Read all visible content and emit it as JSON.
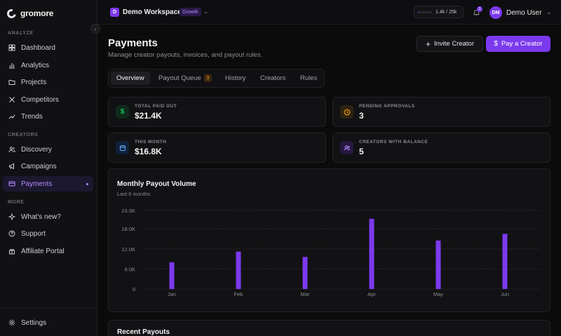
{
  "brand": {
    "name": "gromore"
  },
  "sidebar": {
    "sections": [
      {
        "label": "ANALYZE",
        "items": [
          {
            "label": "Dashboard",
            "icon": "grid-icon"
          },
          {
            "label": "Analytics",
            "icon": "bar-chart-icon"
          },
          {
            "label": "Projects",
            "icon": "folder-icon"
          },
          {
            "label": "Competitors",
            "icon": "swords-icon"
          },
          {
            "label": "Trends",
            "icon": "trend-icon"
          }
        ]
      },
      {
        "label": "CREATORS",
        "items": [
          {
            "label": "Discovery",
            "icon": "users-icon"
          },
          {
            "label": "Campaigns",
            "icon": "megaphone-icon"
          },
          {
            "label": "Payments",
            "icon": "card-icon",
            "active": true
          }
        ]
      },
      {
        "label": "MORE",
        "items": [
          {
            "label": "What's new?",
            "icon": "sparkle-icon"
          },
          {
            "label": "Support",
            "icon": "help-icon"
          },
          {
            "label": "Affiliate Portal",
            "icon": "gift-icon"
          }
        ]
      }
    ],
    "footer": {
      "label": "Settings",
      "icon": "gear-icon"
    }
  },
  "topbar": {
    "workspace_initial": "D",
    "workspace_name": "Demo Workspace",
    "workspace_plan": "Growth",
    "usage_text": "1.4k / 25k",
    "usage_fraction": 0.056,
    "notifications": "3",
    "user_initials": "DM",
    "user_name": "Demo User"
  },
  "page": {
    "title": "Payments",
    "subtitle": "Manage creator payouts, invoices, and payout rules.",
    "invite_label": "Invite Creator",
    "pay_label": "Pay a Creator"
  },
  "tabs": [
    {
      "label": "Overview",
      "active": true
    },
    {
      "label": "Payout Queue",
      "badge": "3"
    },
    {
      "label": "History"
    },
    {
      "label": "Creators"
    },
    {
      "label": "Rules"
    }
  ],
  "stats": [
    {
      "label": "TOTAL PAID OUT",
      "value": "$21.4K",
      "icon": "dollar-icon",
      "color": "#22c55e",
      "bg": "#0f2a1b"
    },
    {
      "label": "PENDING APPROVALS",
      "value": "3",
      "icon": "clock-icon",
      "color": "#f59e0b",
      "bg": "#2e2210"
    },
    {
      "label": "THIS MONTH",
      "value": "$16.8K",
      "icon": "calendar-icon",
      "color": "#60a5fa",
      "bg": "#10203a"
    },
    {
      "label": "CREATORS WITH BALANCE",
      "value": "5",
      "icon": "users-icon",
      "color": "#b58cff",
      "bg": "#24183e"
    }
  ],
  "chart": {
    "title": "Monthly Payout Volume",
    "subtitle": "Last 6 months"
  },
  "chart_data": {
    "type": "bar",
    "categories": [
      "Jan",
      "Feb",
      "Mar",
      "Apr",
      "May",
      "Jun"
    ],
    "values": [
      8000,
      11200,
      9600,
      21000,
      14500,
      16500
    ],
    "yticks": [
      "23.5K",
      "18.0K",
      "12.0K",
      "6.0K",
      "0"
    ],
    "ytick_values": [
      23500,
      18000,
      12000,
      6000,
      0
    ],
    "ylim": [
      0,
      23500
    ],
    "color": "#7c3aed",
    "grid": true
  },
  "recent": {
    "title": "Recent Payouts"
  }
}
